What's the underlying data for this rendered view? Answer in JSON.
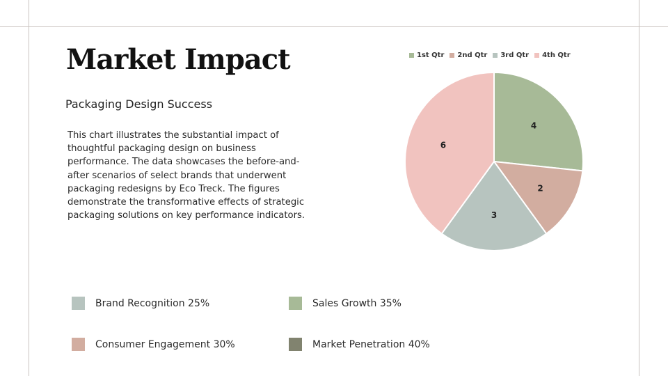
{
  "slide": {
    "title": "Market Impact",
    "subtitle": "Packaging Design Success",
    "body": "This chart illustrates the substantial impact of thoughtful packaging design on business performance. The data showcases the before-and-after scenarios of select brands that underwent packaging redesigns by Eco Treck. The figures demonstrate the transformative effects of strategic packaging solutions on key performance indicators."
  },
  "stats": [
    {
      "label": "Brand Recognition 25%",
      "color": "#b7c4bf"
    },
    {
      "label": "Sales Growth 35%",
      "color": "#a7ba97"
    },
    {
      "label": "Consumer Engagement 30%",
      "color": "#d2ada0"
    },
    {
      "label": "Market Penetration 40%",
      "color": "#81836f"
    }
  ],
  "chart_data": {
    "type": "pie",
    "categories": [
      "1st Qtr",
      "2nd Qtr",
      "3rd Qtr",
      "4th Qtr"
    ],
    "values": [
      4,
      2,
      3,
      6
    ],
    "colors": [
      "#a7ba97",
      "#d2ada0",
      "#b7c4bf",
      "#f1c3bf"
    ],
    "legend_position": "top",
    "data_labels": true
  }
}
